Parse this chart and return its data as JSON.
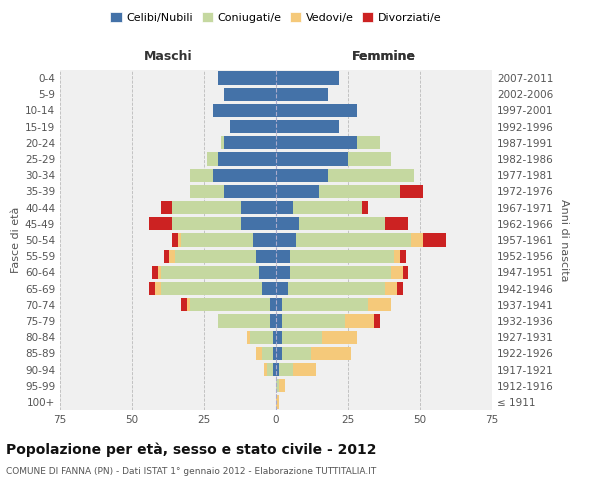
{
  "age_groups": [
    "100+",
    "95-99",
    "90-94",
    "85-89",
    "80-84",
    "75-79",
    "70-74",
    "65-69",
    "60-64",
    "55-59",
    "50-54",
    "45-49",
    "40-44",
    "35-39",
    "30-34",
    "25-29",
    "20-24",
    "15-19",
    "10-14",
    "5-9",
    "0-4"
  ],
  "birth_years": [
    "≤ 1911",
    "1912-1916",
    "1917-1921",
    "1922-1926",
    "1927-1931",
    "1932-1936",
    "1937-1941",
    "1942-1946",
    "1947-1951",
    "1952-1956",
    "1957-1961",
    "1962-1966",
    "1967-1971",
    "1972-1976",
    "1977-1981",
    "1982-1986",
    "1987-1991",
    "1992-1996",
    "1997-2001",
    "2002-2006",
    "2007-2011"
  ],
  "colors": {
    "celibi": "#4472a8",
    "coniugati": "#c5d8a0",
    "vedovi": "#f5c97a",
    "divorziati": "#cc2222"
  },
  "maschi": {
    "celibi": [
      0,
      0,
      1,
      1,
      1,
      2,
      2,
      5,
      6,
      7,
      8,
      12,
      12,
      18,
      22,
      20,
      18,
      16,
      22,
      18,
      20
    ],
    "coniugati": [
      0,
      0,
      2,
      4,
      8,
      18,
      28,
      35,
      34,
      28,
      25,
      24,
      24,
      12,
      8,
      4,
      1,
      0,
      0,
      0,
      0
    ],
    "vedovi": [
      0,
      0,
      1,
      2,
      1,
      0,
      1,
      2,
      1,
      2,
      1,
      0,
      0,
      0,
      0,
      0,
      0,
      0,
      0,
      0,
      0
    ],
    "divorziati": [
      0,
      0,
      0,
      0,
      0,
      0,
      2,
      2,
      2,
      2,
      2,
      8,
      4,
      0,
      0,
      0,
      0,
      0,
      0,
      0,
      0
    ]
  },
  "femmine": {
    "celibi": [
      0,
      0,
      1,
      2,
      2,
      2,
      2,
      4,
      5,
      5,
      7,
      8,
      6,
      15,
      18,
      25,
      28,
      22,
      28,
      18,
      22
    ],
    "coniugati": [
      0,
      1,
      5,
      10,
      14,
      22,
      30,
      34,
      35,
      36,
      40,
      30,
      24,
      28,
      30,
      15,
      8,
      0,
      0,
      0,
      0
    ],
    "vedovi": [
      1,
      2,
      8,
      14,
      12,
      10,
      8,
      4,
      4,
      2,
      4,
      0,
      0,
      0,
      0,
      0,
      0,
      0,
      0,
      0,
      0
    ],
    "divorziati": [
      0,
      0,
      0,
      0,
      0,
      2,
      0,
      2,
      2,
      2,
      8,
      8,
      2,
      8,
      0,
      0,
      0,
      0,
      0,
      0,
      0
    ]
  },
  "title": "Popolazione per età, sesso e stato civile - 2012",
  "subtitle": "COMUNE DI FANNA (PN) - Dati ISTAT 1° gennaio 2012 - Elaborazione TUTTITALIA.IT",
  "xlabel_left": "Maschi",
  "xlabel_right": "Femmine",
  "ylabel_left": "Fasce di età",
  "ylabel_right": "Anni di nascita",
  "xlim": 75,
  "legend_labels": [
    "Celibi/Nubili",
    "Coniugati/e",
    "Vedovi/e",
    "Divorziati/e"
  ],
  "bg_color": "#f0f0f0",
  "grid_color": "#bbbbbb",
  "title_fontsize": 10,
  "subtitle_fontsize": 6.5,
  "tick_fontsize": 7.5,
  "label_fontsize": 8,
  "legend_fontsize": 8
}
